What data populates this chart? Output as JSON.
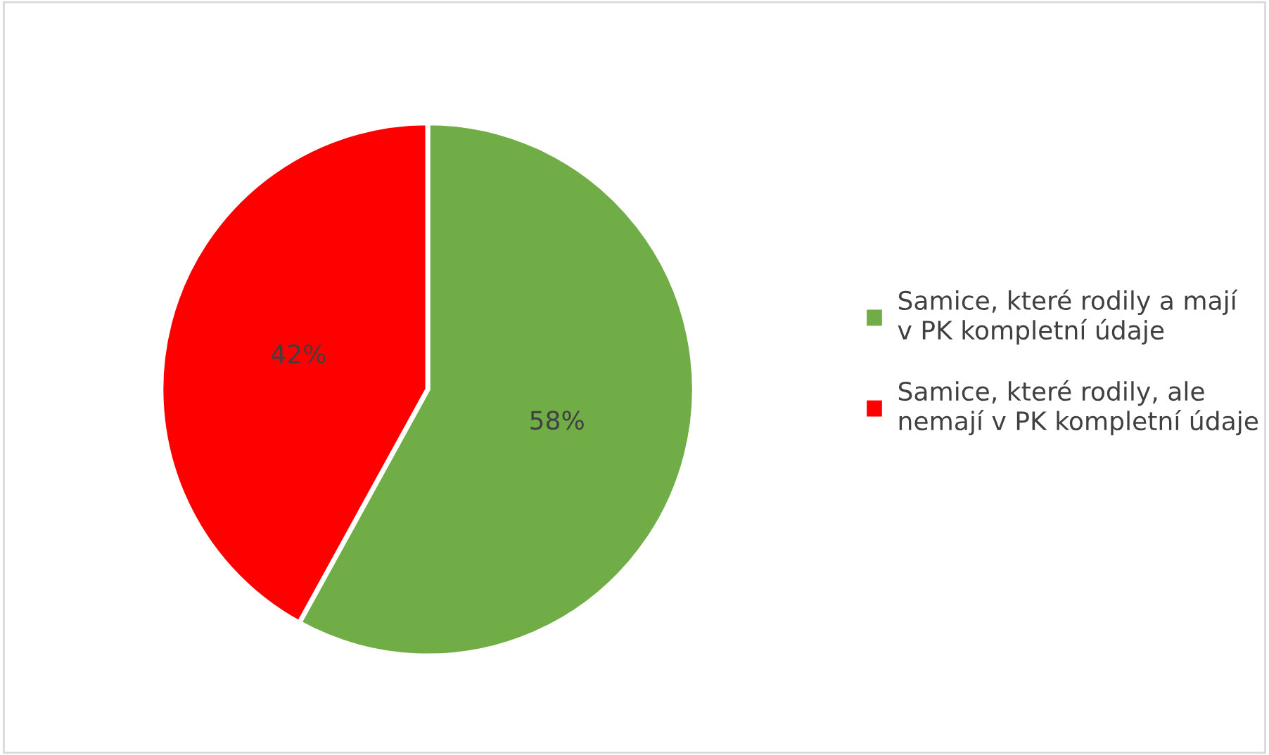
{
  "chart_data": {
    "type": "pie",
    "categories": [
      "Samice, které rodily a mají v PK kompletní údaje",
      "Samice, které rodily, ale nemají v PK kompletní údaje"
    ],
    "values": [
      58,
      42
    ],
    "colors": [
      "#70ad47",
      "#ff0000"
    ],
    "value_labels": [
      "58%",
      "42%"
    ],
    "legend": "right"
  }
}
